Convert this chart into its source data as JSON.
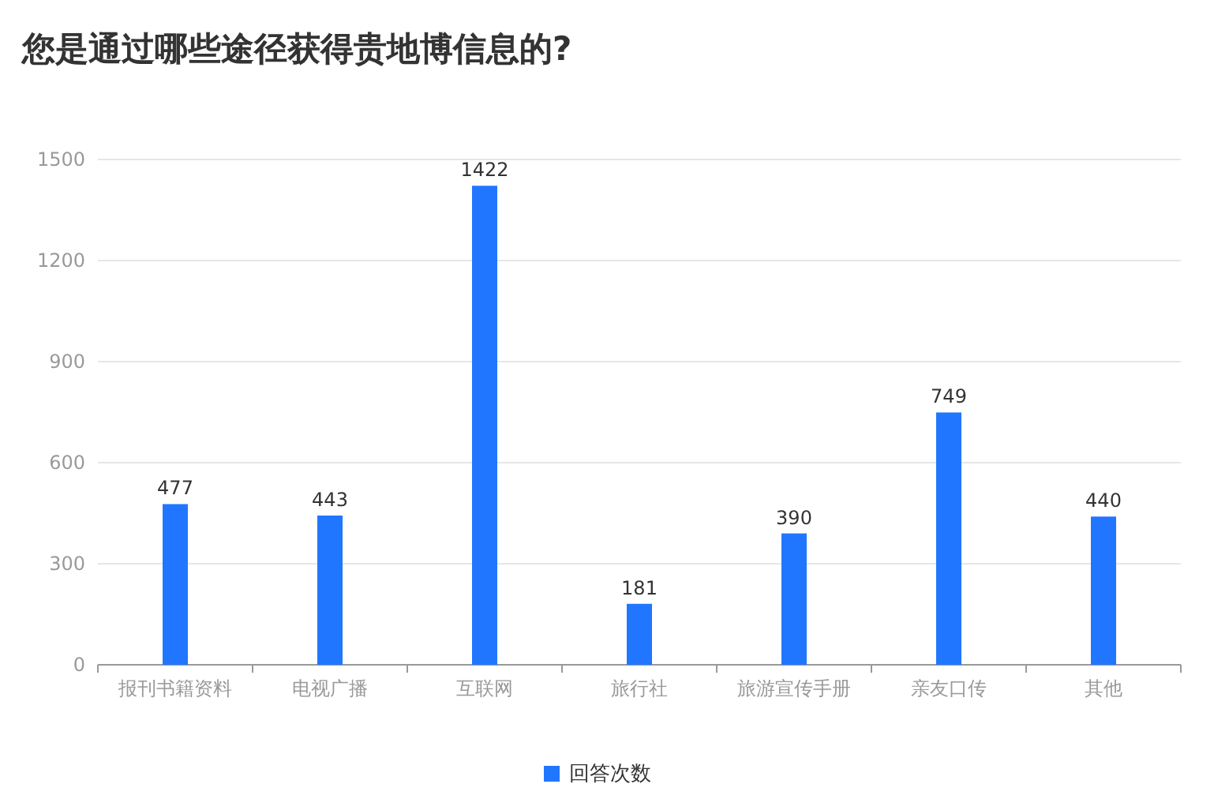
{
  "chart_data": {
    "type": "bar",
    "title": "您是通过哪些途径获得贵地博信息的?",
    "categories": [
      "报刊书籍资料",
      "电视广播",
      "互联网",
      "旅行社",
      "旅游宣传手册",
      "亲友口传",
      "其他"
    ],
    "series": [
      {
        "name": "回答次数",
        "color": "#2176ff",
        "values": [
          477,
          443,
          1422,
          181,
          390,
          749,
          440
        ]
      }
    ],
    "ylim": [
      0,
      1500
    ],
    "yticks": [
      0,
      300,
      600,
      900,
      1200,
      1500
    ],
    "grid": "y",
    "legend": "bottom",
    "data_labels": true
  }
}
